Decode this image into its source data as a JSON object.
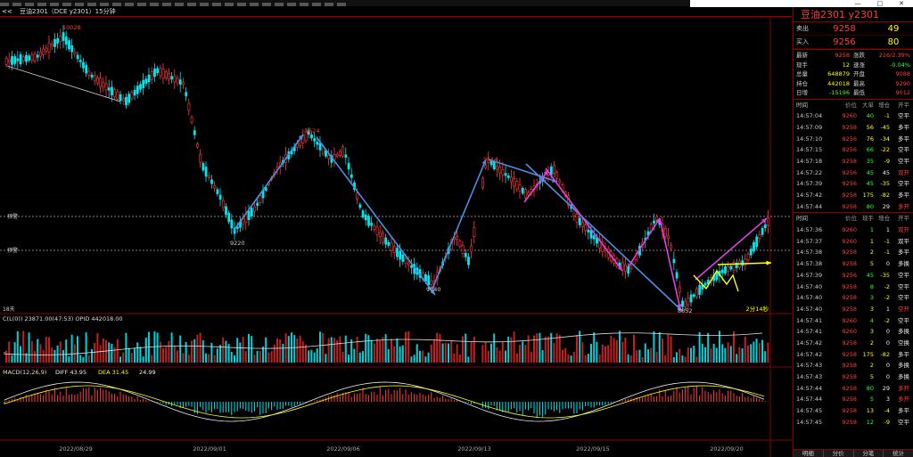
{
  "menubar": {
    "count": 28
  },
  "window_buttons": [
    "—",
    "□",
    "✕"
  ],
  "titlebar": {
    "text": "豆油2301（DCE y2301）15分钟",
    "tag": "<<"
  },
  "chart": {
    "peak_labels": [
      "10028",
      "9624",
      "9514"
    ],
    "trough_labels": [
      "9220",
      "9040",
      "8852"
    ],
    "markers": [
      "预警",
      "预警"
    ],
    "days_label": "18天",
    "countdown": "2分14秒",
    "vol_header": "C(L(0)) 23871.00(47:53)  OPID 442018.00",
    "macd_header_label": "MACD(12,26,9)",
    "macd_diff": "DIFF 43.95",
    "macd_dea": "DEA 31.45",
    "macd_val": "24.99",
    "dates": [
      "2022/08/29",
      "2022/09/01",
      "2022/09/06",
      "2022/09/13",
      "2022/09/15",
      "2022/09/20"
    ]
  },
  "panel": {
    "title": "豆油2301  y2301",
    "ask": {
      "label": "卖出",
      "price": "9258",
      "volume": "49"
    },
    "bid": {
      "label": "买入",
      "price": "9256",
      "volume": "80"
    },
    "stats": [
      [
        "最新",
        "9258",
        "涨跌",
        "216/2.39%"
      ],
      [
        "现手",
        "12",
        "速涨",
        "-0.04%"
      ],
      [
        "总量",
        "648879",
        "开盘",
        "9088"
      ],
      [
        "持仓",
        "442018",
        "最高",
        "9290"
      ],
      [
        "日增",
        "-15196",
        "最低",
        "9012"
      ]
    ],
    "ticks_header": [
      "时间",
      "价位",
      "大单",
      "增仓",
      "开平"
    ],
    "ticks": [
      [
        "14:57:04",
        "9260",
        "40",
        "-1",
        "空平"
      ],
      [
        "14:57:09",
        "9258",
        "56",
        "-45",
        "多平"
      ],
      [
        "14:57:10",
        "9256",
        "76",
        "-34",
        "多平"
      ],
      [
        "14:57:15",
        "9256",
        "66",
        "-22",
        "空平"
      ],
      [
        "14:57:18",
        "9258",
        "35",
        "-9",
        "空平"
      ],
      [
        "14:57:22",
        "9256",
        "45",
        "45",
        "双开"
      ],
      [
        "14:57:39",
        "9256",
        "45",
        "-35",
        "空平"
      ],
      [
        "14:57:42",
        "9258",
        "175",
        "-82",
        "多平"
      ],
      [
        "14:57:44",
        "9258",
        "80",
        "29",
        "多开"
      ]
    ],
    "trades_header": [
      "时间",
      "价位",
      "现手",
      "增仓",
      "开平"
    ],
    "trades": [
      [
        "14:57:36",
        "9260",
        "1",
        "1",
        "双开"
      ],
      [
        "14:57:37",
        "9260",
        "1",
        "-1",
        "双平"
      ],
      [
        "14:57:38",
        "9258",
        "2",
        "-1",
        "多平"
      ],
      [
        "14:57:38",
        "9258",
        "5",
        "0",
        "多换"
      ],
      [
        "14:57:39",
        "9256",
        "45",
        "-35",
        "空平"
      ],
      [
        "14:57:40",
        "9258",
        "8",
        "-2",
        "空平"
      ],
      [
        "14:57:40",
        "9258",
        "3",
        "-2",
        "空平"
      ],
      [
        "14:57:40",
        "9258",
        "3",
        "1",
        "空开"
      ],
      [
        "14:57:41",
        "9260",
        "4",
        "-2",
        "空平"
      ],
      [
        "14:57:41",
        "9260",
        "3",
        "0",
        "多换"
      ],
      [
        "14:57:42",
        "9258",
        "2",
        "0",
        "空换"
      ],
      [
        "14:57:42",
        "9258",
        "175",
        "-82",
        "多平"
      ],
      [
        "14:57:43",
        "9258",
        "2",
        "0",
        "多换"
      ],
      [
        "14:57:43",
        "9258",
        "5",
        "0",
        "多换"
      ],
      [
        "14:57:44",
        "9258",
        "80",
        "29",
        "多开"
      ],
      [
        "14:57:44",
        "9258",
        "5",
        "3",
        "多开"
      ],
      [
        "14:57:45",
        "9258",
        "13",
        "-4",
        "多平"
      ],
      [
        "14:57:45",
        "9258",
        "12",
        "-9",
        "空平"
      ]
    ],
    "tabs": [
      "明细",
      "分价",
      "分笔",
      "统计"
    ]
  }
}
